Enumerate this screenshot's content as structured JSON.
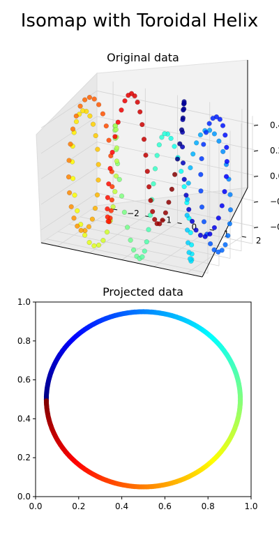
{
  "figure": {
    "title": "Isomap with Toroidal Helix"
  },
  "chart_data": [
    {
      "type": "scatter",
      "projection": "3d",
      "title": "Original data",
      "curve": "toroidal helix",
      "colormap": "jet",
      "xlim": [
        -2.5,
        2.5
      ],
      "ylim": [
        -2.5,
        2.5
      ],
      "zlim": [
        -0.5,
        0.5
      ],
      "y_ticks": [
        -2,
        -1,
        0,
        1,
        2
      ],
      "y_tick_labels": [
        "−2",
        "−1",
        "0",
        "1",
        "2"
      ],
      "z_ticks": [
        -0.4,
        -0.2,
        0.0,
        0.2,
        0.4
      ],
      "z_tick_labels": [
        "−0.4",
        "−0.2",
        "0.0",
        "0.2",
        "0.4"
      ],
      "x_tick_labels_visible": false,
      "helix": {
        "major_radius": 2,
        "minor_radius": 0.5,
        "turns": 8,
        "points": 200
      }
    },
    {
      "type": "scatter",
      "title": "Projected data",
      "shape": "circle",
      "center": [
        0.5,
        0.5
      ],
      "radius": 0.45,
      "colormap": "jet",
      "start_angle_deg": 180,
      "points": 360,
      "xlim": [
        0,
        1
      ],
      "ylim": [
        0,
        1
      ],
      "x_ticks": [
        0.0,
        0.2,
        0.4,
        0.6,
        0.8,
        1.0
      ],
      "x_tick_labels": [
        "0.0",
        "0.2",
        "0.4",
        "0.6",
        "0.8",
        "1.0"
      ],
      "y_ticks": [
        0.0,
        0.2,
        0.4,
        0.6,
        0.8,
        1.0
      ],
      "y_tick_labels": [
        "0.0",
        "0.2",
        "0.4",
        "0.6",
        "0.8",
        "1.0"
      ]
    }
  ]
}
